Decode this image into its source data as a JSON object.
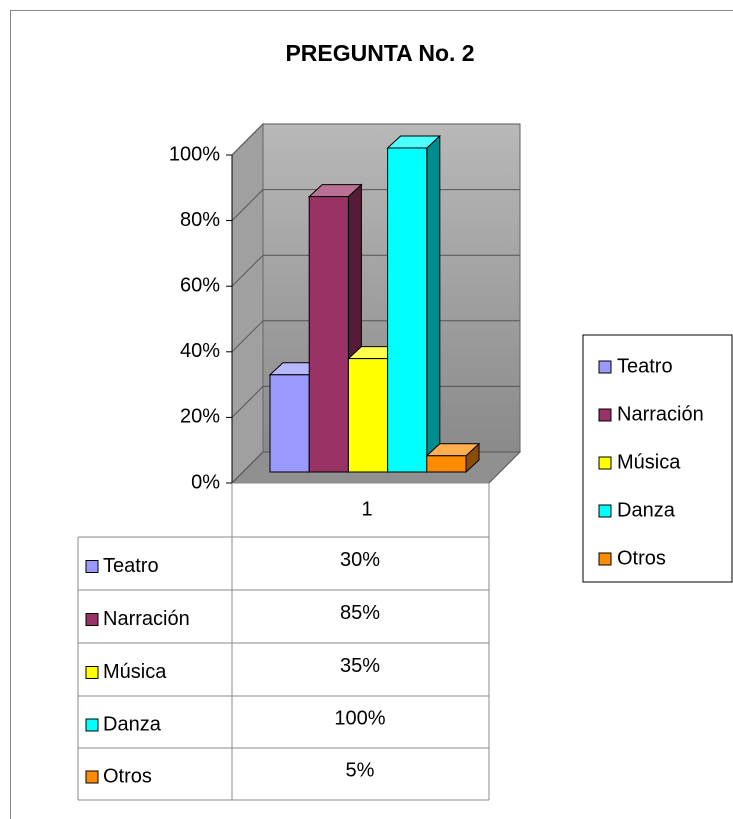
{
  "chart_data": {
    "type": "bar",
    "title": "PREGUNTA No. 2",
    "categories": [
      "1"
    ],
    "series": [
      {
        "name": "Teatro",
        "color": "#9999ff",
        "values": [
          30
        ],
        "value_labels": [
          "30%"
        ]
      },
      {
        "name": "Narración",
        "color": "#993366",
        "values": [
          85
        ],
        "value_labels": [
          "85%"
        ]
      },
      {
        "name": "Música",
        "color": "#ffff00",
        "values": [
          35
        ],
        "value_labels": [
          "35%"
        ]
      },
      {
        "name": "Danza",
        "color": "#00ffff",
        "values": [
          100
        ],
        "value_labels": [
          "100%"
        ]
      },
      {
        "name": "Otros",
        "color": "#ff8c00",
        "values": [
          5
        ],
        "value_labels": [
          "5%"
        ]
      }
    ],
    "ylim": [
      0,
      100
    ],
    "yticks": [
      {
        "value": 0,
        "label": "0%"
      },
      {
        "value": 20,
        "label": "20%"
      },
      {
        "value": 40,
        "label": "40%"
      },
      {
        "value": 60,
        "label": "60%"
      },
      {
        "value": 80,
        "label": "80%"
      },
      {
        "value": 100,
        "label": "100%"
      }
    ],
    "grid": true,
    "legend": "right",
    "data_table": true
  }
}
